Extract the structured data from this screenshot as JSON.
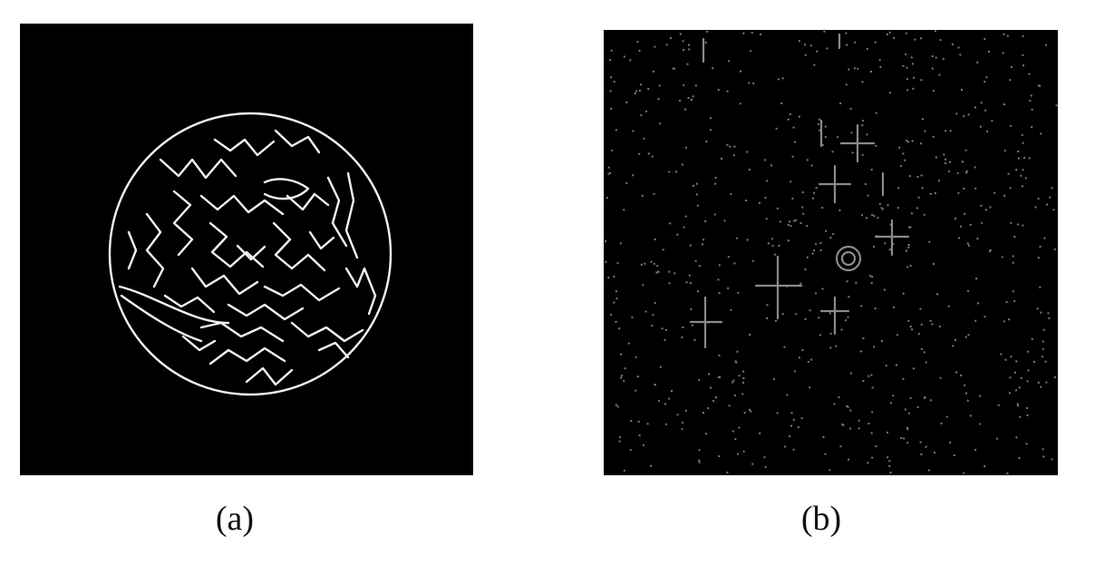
{
  "figure": {
    "panels": [
      {
        "id": "a",
        "caption": "(a)"
      },
      {
        "id": "b",
        "caption": "(b)"
      }
    ]
  },
  "colors": {
    "panel_background": "#000000",
    "edge_stroke_a": "#f2f2f2",
    "edge_stroke_b": "#8a8a8a",
    "page_background": "#ffffff"
  }
}
